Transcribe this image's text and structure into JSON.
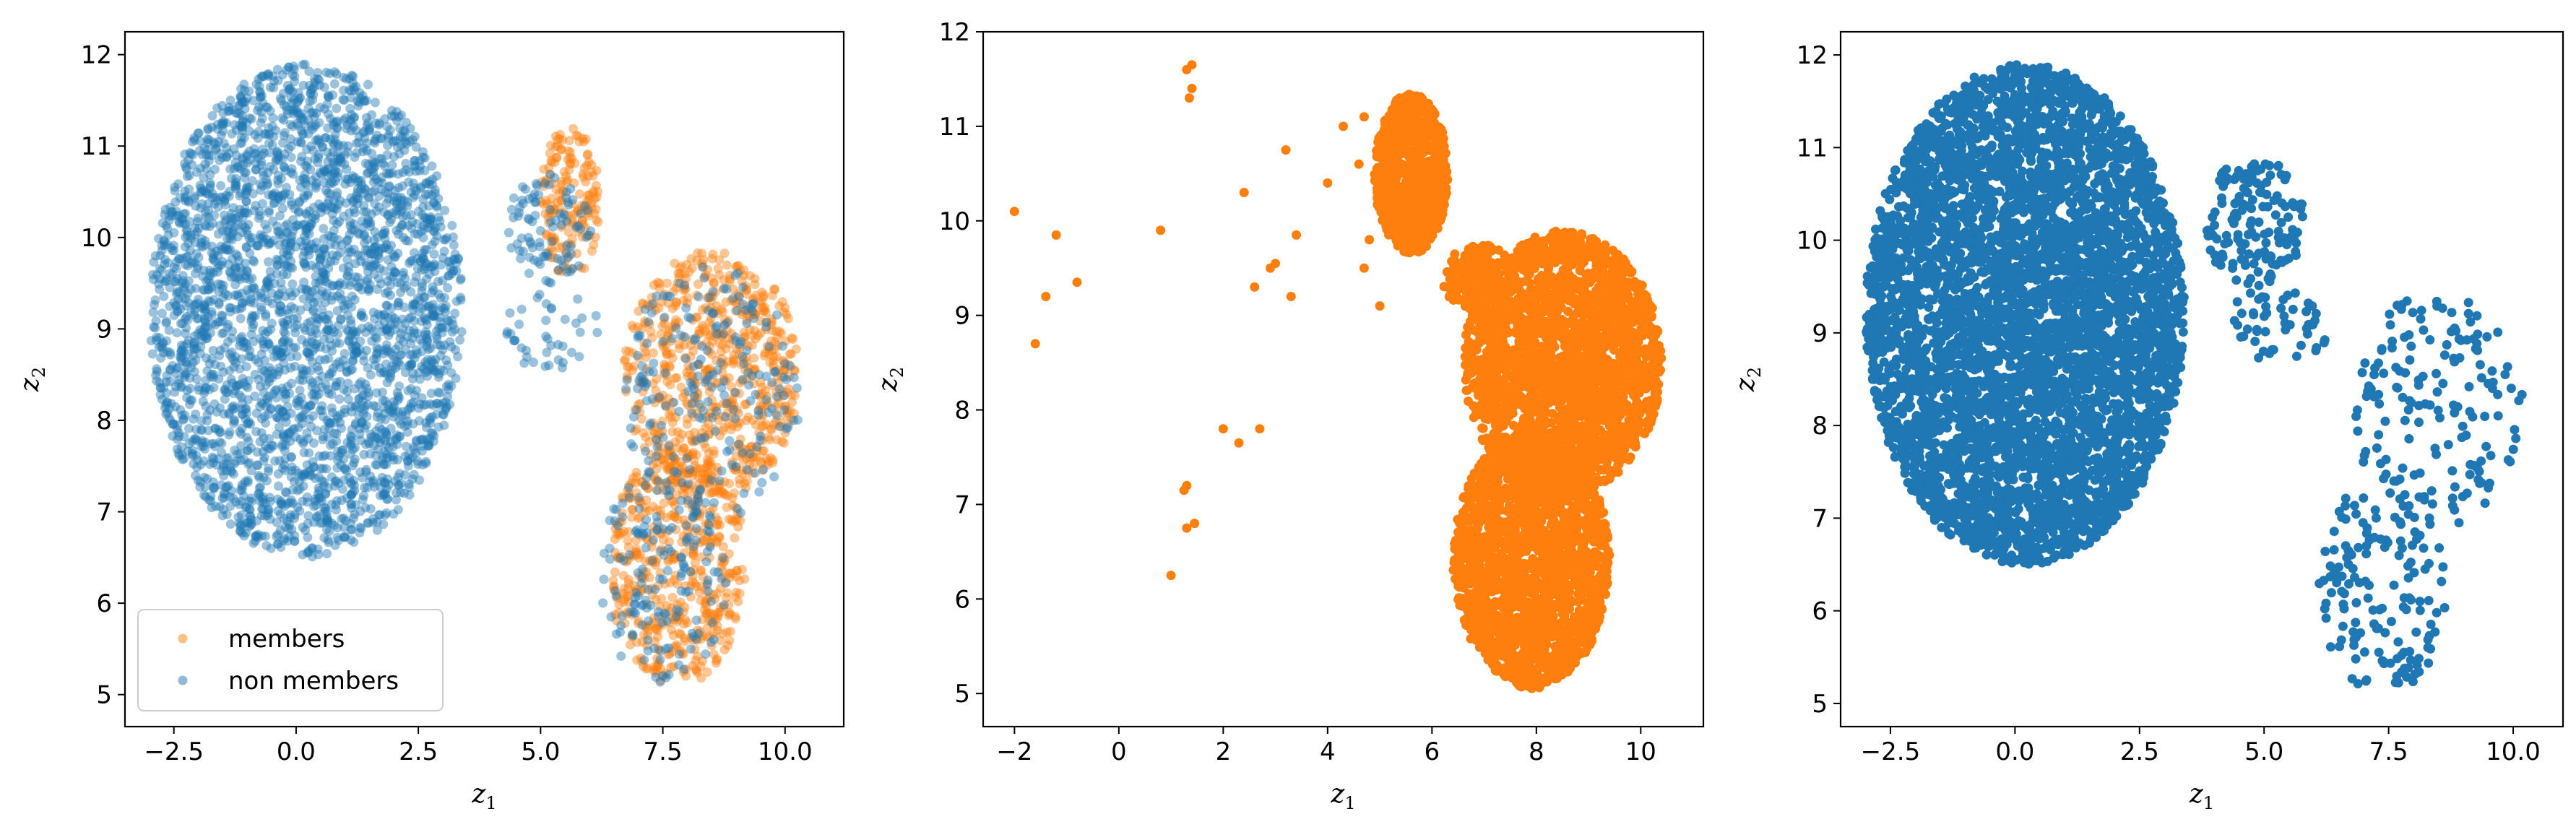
{
  "colors": {
    "members": "#ff7f0e",
    "non_members": "#1f77b4"
  },
  "chart_data": [
    {
      "type": "scatter",
      "xlabel": "z",
      "xlabel_sub": "1",
      "ylabel": "z",
      "ylabel_sub": "2",
      "xlim": [
        -3.5,
        11.2
      ],
      "ylim": [
        4.65,
        12.25
      ],
      "xticks": [
        -2.5,
        0.0,
        2.5,
        5.0,
        7.5,
        10.0
      ],
      "xtick_labels": [
        "−2.5",
        "0.0",
        "2.5",
        "5.0",
        "7.5",
        "10.0"
      ],
      "yticks": [
        5,
        6,
        7,
        8,
        9,
        10,
        11,
        12
      ],
      "ytick_labels": [
        "5",
        "6",
        "7",
        "8",
        "9",
        "10",
        "11",
        "12"
      ],
      "legend": {
        "placement": "lower-left",
        "entries": [
          {
            "label": "members",
            "series": "members"
          },
          {
            "label": "non members",
            "series": "non_members"
          }
        ]
      },
      "alpha": 0.45,
      "series": [
        {
          "name": "members",
          "color_key": "members",
          "regions": [
            {
              "cx": 5.6,
              "cy": 10.4,
              "rx": 0.6,
              "ry": 0.85,
              "n": 160
            },
            {
              "cx": 8.5,
              "cy": 8.5,
              "rx": 1.8,
              "ry": 1.35,
              "n": 650
            },
            {
              "cx": 7.8,
              "cy": 6.4,
              "rx": 1.4,
              "ry": 1.3,
              "n": 480
            }
          ]
        },
        {
          "name": "non members",
          "color_key": "non_members",
          "regions": [
            {
              "cx": 0.2,
              "cy": 9.2,
              "rx": 3.2,
              "ry": 2.7,
              "n": 3000
            },
            {
              "cx": 5.2,
              "cy": 10.1,
              "rx": 0.9,
              "ry": 0.6,
              "n": 90
            },
            {
              "cx": 5.2,
              "cy": 9.0,
              "rx": 1.0,
              "ry": 0.45,
              "n": 40
            },
            {
              "cx": 8.5,
              "cy": 8.3,
              "rx": 1.8,
              "ry": 1.4,
              "n": 220
            },
            {
              "cx": 7.5,
              "cy": 6.3,
              "rx": 1.3,
              "ry": 1.2,
              "n": 160
            }
          ]
        }
      ]
    },
    {
      "type": "scatter",
      "xlabel": "z",
      "xlabel_sub": "1",
      "ylabel": "z",
      "ylabel_sub": "2",
      "xlim": [
        -2.6,
        11.2
      ],
      "ylim": [
        4.65,
        12.0
      ],
      "xticks": [
        -2,
        0,
        2,
        4,
        6,
        8,
        10
      ],
      "xtick_labels": [
        "−2",
        "0",
        "2",
        "4",
        "6",
        "8",
        "10"
      ],
      "yticks": [
        5,
        6,
        7,
        8,
        9,
        10,
        11,
        12
      ],
      "ytick_labels": [
        "5",
        "6",
        "7",
        "8",
        "9",
        "10",
        "11",
        "12"
      ],
      "alpha": 1.0,
      "series": [
        {
          "name": "members",
          "color_key": "members",
          "points": [
            [
              -2.0,
              10.1
            ],
            [
              -1.2,
              9.85
            ],
            [
              -0.8,
              9.35
            ],
            [
              -1.4,
              9.2
            ],
            [
              -1.6,
              8.7
            ],
            [
              0.8,
              9.9
            ],
            [
              1.3,
              11.6
            ],
            [
              1.4,
              11.65
            ],
            [
              1.35,
              11.3
            ],
            [
              1.4,
              11.4
            ],
            [
              2.4,
              10.3
            ],
            [
              3.2,
              10.75
            ],
            [
              3.4,
              9.85
            ],
            [
              2.9,
              9.5
            ],
            [
              3.0,
              9.55
            ],
            [
              2.6,
              9.3
            ],
            [
              3.3,
              9.2
            ],
            [
              2.0,
              7.8
            ],
            [
              2.3,
              7.65
            ],
            [
              2.7,
              7.8
            ],
            [
              1.3,
              7.2
            ],
            [
              1.25,
              7.15
            ],
            [
              1.3,
              6.75
            ],
            [
              1.45,
              6.8
            ],
            [
              1.0,
              6.25
            ],
            [
              4.3,
              11.0
            ],
            [
              4.7,
              11.1
            ],
            [
              4.6,
              10.6
            ],
            [
              4.0,
              10.4
            ],
            [
              4.8,
              9.8
            ],
            [
              4.7,
              9.5
            ],
            [
              5.0,
              9.1
            ]
          ],
          "regions": [
            {
              "cx": 5.6,
              "cy": 10.5,
              "rx": 0.7,
              "ry": 0.85,
              "n": 900
            },
            {
              "cx": 8.5,
              "cy": 8.5,
              "rx": 1.9,
              "ry": 1.4,
              "n": 2200
            },
            {
              "cx": 7.9,
              "cy": 6.4,
              "rx": 1.5,
              "ry": 1.35,
              "n": 1800
            },
            {
              "cx": 6.9,
              "cy": 9.4,
              "rx": 0.7,
              "ry": 0.35,
              "n": 200
            }
          ]
        }
      ]
    },
    {
      "type": "scatter",
      "xlabel": "z",
      "xlabel_sub": "1",
      "ylabel": "z",
      "ylabel_sub": "2",
      "xlim": [
        -3.5,
        11.0
      ],
      "ylim": [
        4.75,
        12.25
      ],
      "xticks": [
        -2.5,
        0.0,
        2.5,
        5.0,
        7.5,
        10.0
      ],
      "xtick_labels": [
        "−2.5",
        "0.0",
        "2.5",
        "5.0",
        "7.5",
        "10.0"
      ],
      "yticks": [
        5,
        6,
        7,
        8,
        9,
        10,
        11,
        12
      ],
      "ytick_labels": [
        "5",
        "6",
        "7",
        "8",
        "9",
        "10",
        "11",
        "12"
      ],
      "alpha": 1.0,
      "series": [
        {
          "name": "non members",
          "color_key": "non_members",
          "regions": [
            {
              "cx": 0.2,
              "cy": 9.2,
              "rx": 3.2,
              "ry": 2.7,
              "n": 5000
            },
            {
              "cx": 4.8,
              "cy": 10.2,
              "rx": 1.0,
              "ry": 0.7,
              "n": 150
            },
            {
              "cx": 5.3,
              "cy": 9.1,
              "rx": 1.1,
              "ry": 0.4,
              "n": 50
            },
            {
              "cx": 8.5,
              "cy": 8.2,
              "rx": 1.7,
              "ry": 1.3,
              "n": 160
            },
            {
              "cx": 7.4,
              "cy": 6.3,
              "rx": 1.3,
              "ry": 1.2,
              "n": 150
            }
          ]
        }
      ]
    }
  ]
}
